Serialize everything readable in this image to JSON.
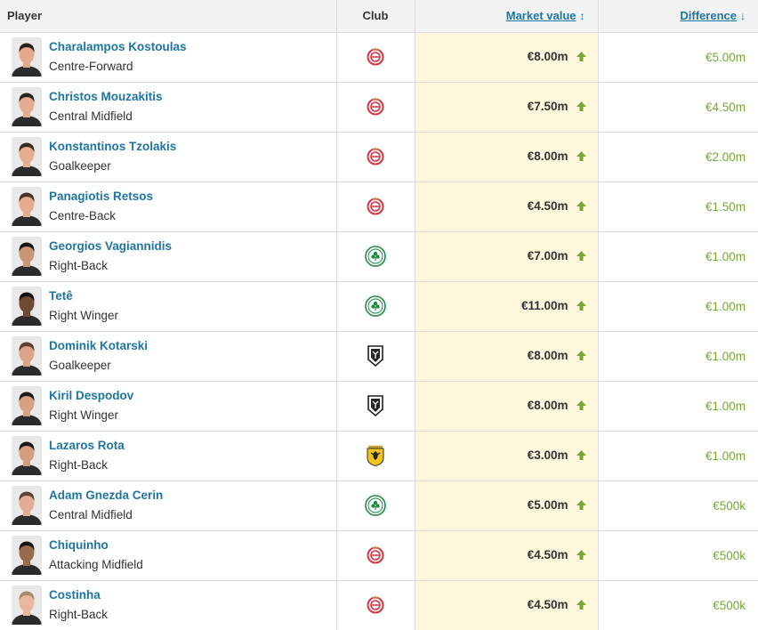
{
  "table": {
    "headers": {
      "player": "Player",
      "club": "Club",
      "market_value": "Market value",
      "difference": "Difference"
    },
    "rows": [
      {
        "name": "Charalampos Kostoulas",
        "position": "Centre-Forward",
        "club": "olympiacos-logo",
        "market_value": "€8.00m",
        "difference": "€5.00m",
        "trend": "up",
        "skin": "#e2a98c",
        "hair": "#2a1d16"
      },
      {
        "name": "Christos Mouzakitis",
        "position": "Central Midfield",
        "club": "olympiacos-logo",
        "market_value": "€7.50m",
        "difference": "€4.50m",
        "trend": "up",
        "skin": "#e4ad92",
        "hair": "#2b211b"
      },
      {
        "name": "Konstantinos Tzolakis",
        "position": "Goalkeeper",
        "club": "olympiacos-logo",
        "market_value": "€8.00m",
        "difference": "€2.00m",
        "trend": "up",
        "skin": "#e6ae90",
        "hair": "#3a2a20"
      },
      {
        "name": "Panagiotis Retsos",
        "position": "Centre-Back",
        "club": "olympiacos-logo",
        "market_value": "€4.50m",
        "difference": "€1.50m",
        "trend": "up",
        "skin": "#e5ab8e",
        "hair": "#4a3325"
      },
      {
        "name": "Georgios Vagiannidis",
        "position": "Right-Back",
        "club": "panathinaikos-logo",
        "market_value": "€7.00m",
        "difference": "€1.00m",
        "trend": "up",
        "skin": "#c99678",
        "hair": "#1b1512"
      },
      {
        "name": "Tetê",
        "position": "Right Winger",
        "club": "panathinaikos-logo",
        "market_value": "€11.00m",
        "difference": "€1.00m",
        "trend": "up",
        "skin": "#6e4a34",
        "hair": "#140f0c"
      },
      {
        "name": "Dominik Kotarski",
        "position": "Goalkeeper",
        "club": "paok-logo",
        "market_value": "€8.00m",
        "difference": "€1.00m",
        "trend": "up",
        "skin": "#dba489",
        "hair": "#5a4130"
      },
      {
        "name": "Kiril Despodov",
        "position": "Right Winger",
        "club": "paok-logo",
        "market_value": "€8.00m",
        "difference": "€1.00m",
        "trend": "up",
        "skin": "#d7a184",
        "hair": "#221914"
      },
      {
        "name": "Lazaros Rota",
        "position": "Right-Back",
        "club": "aek-logo",
        "market_value": "€3.00m",
        "difference": "€1.00m",
        "trend": "up",
        "skin": "#d39d80",
        "hair": "#1e1612"
      },
      {
        "name": "Adam Gnezda Cerin",
        "position": "Central Midfield",
        "club": "panathinaikos-logo",
        "market_value": "€5.00m",
        "difference": "€500k",
        "trend": "up",
        "skin": "#e2ad92",
        "hair": "#5b4535"
      },
      {
        "name": "Chiquinho",
        "position": "Attacking Midfield",
        "club": "olympiacos-logo",
        "market_value": "€4.50m",
        "difference": "€500k",
        "trend": "up",
        "skin": "#9a6a4c",
        "hair": "#1a120e"
      },
      {
        "name": "Costinha",
        "position": "Right-Back",
        "club": "olympiacos-logo",
        "market_value": "€4.50m",
        "difference": "€500k",
        "trend": "up",
        "skin": "#e8b79c",
        "hair": "#a88c70"
      }
    ]
  },
  "colors": {
    "link": "#1d75a3",
    "highlight_column": "#fdf6db",
    "positive": "#76a735",
    "olympiacos": "#d6363f",
    "panathinaikos": "#1f8a44",
    "paok": "#222222",
    "aek": "#f2c318"
  },
  "icons": {
    "sort_market_value": "sort-both-icon",
    "sort_difference": "sort-down-icon",
    "trend": "arrow-up-icon"
  }
}
